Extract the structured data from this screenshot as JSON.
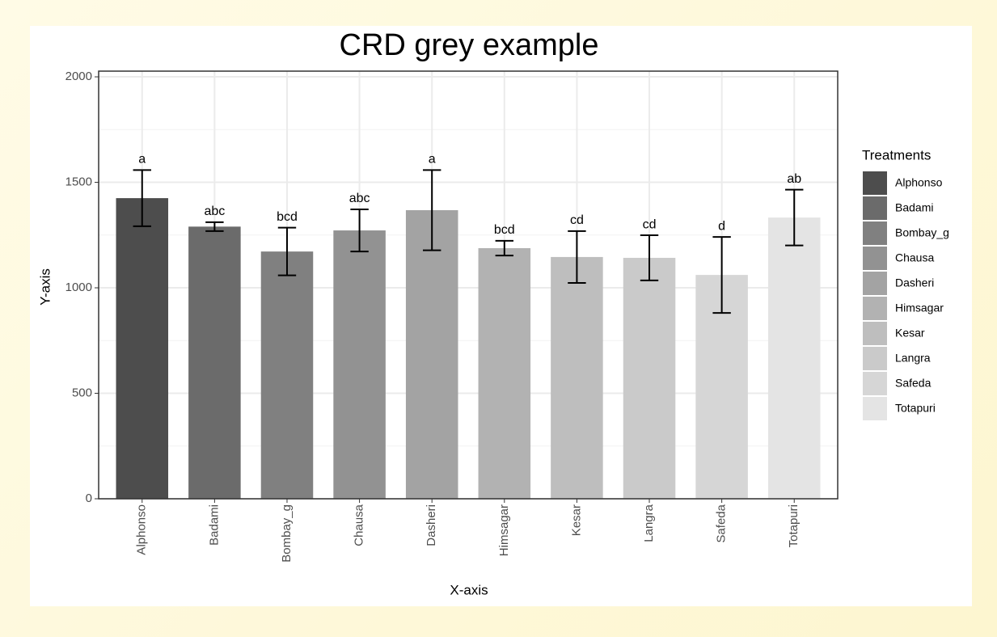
{
  "chart_data": {
    "type": "bar",
    "title": "CRD grey example",
    "x_label": "X-axis",
    "y_label": "Y-axis",
    "legend_title": "Treatments",
    "categories": [
      "Alphonso",
      "Badami",
      "Bombay_g",
      "Chausa",
      "Dasheri",
      "Himsagar",
      "Kesar",
      "Langra",
      "Safeda",
      "Totapuri"
    ],
    "values": [
      1425,
      1290,
      1172,
      1272,
      1368,
      1188,
      1146,
      1142,
      1061,
      1333
    ],
    "errors": [
      133,
      21,
      113,
      100,
      190,
      35,
      123,
      107,
      180,
      132
    ],
    "annotations": [
      "a",
      "abc",
      "bcd",
      "abc",
      "a",
      "bcd",
      "cd",
      "cd",
      "d",
      "ab"
    ],
    "colors": [
      "#4d4d4d",
      "#6b6b6b",
      "#808080",
      "#929292",
      "#a3a3a3",
      "#b2b2b2",
      "#bebebe",
      "#cacaca",
      "#d6d6d6",
      "#e4e4e4"
    ],
    "ylim": [
      0,
      2027
    ],
    "yticks": [
      0,
      500,
      1000,
      1500,
      2000
    ],
    "grid": true
  }
}
